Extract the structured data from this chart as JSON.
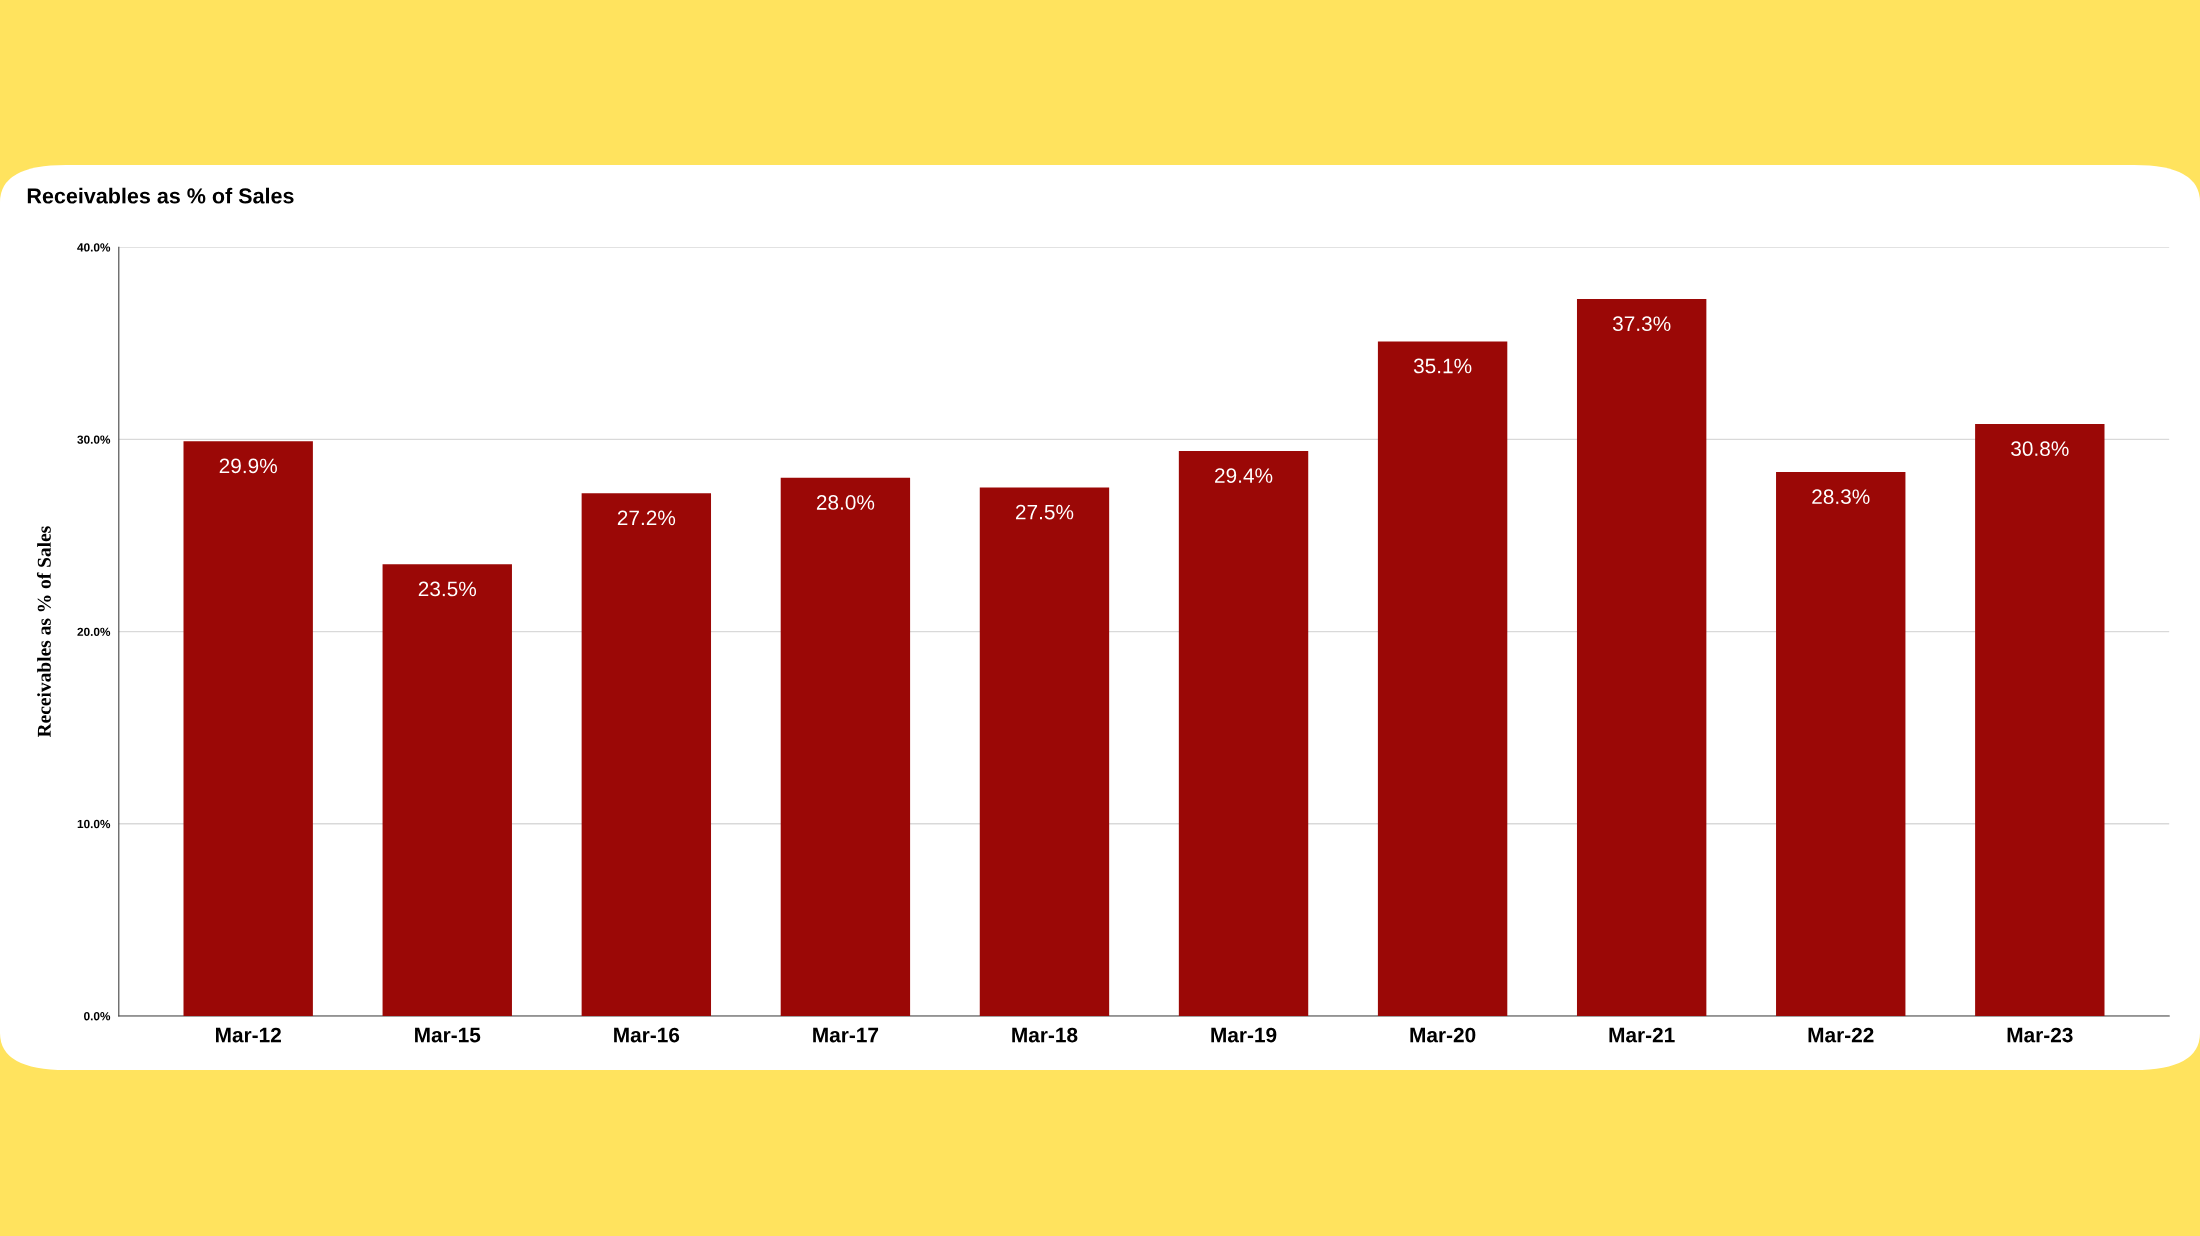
{
  "chart_data": {
    "type": "bar",
    "title": "Receivables as % of Sales",
    "ylabel": "Receivables as % of Sales",
    "categories": [
      "Mar-12",
      "Mar-15",
      "Mar-16",
      "Mar-17",
      "Mar-18",
      "Mar-19",
      "Mar-20",
      "Mar-21",
      "Mar-22",
      "Mar-23"
    ],
    "values": [
      29.9,
      23.5,
      27.2,
      28.0,
      27.5,
      29.4,
      35.1,
      37.3,
      28.3,
      30.8
    ],
    "value_labels": [
      "29.9%",
      "23.5%",
      "27.2%",
      "28.0%",
      "27.5%",
      "29.4%",
      "35.1%",
      "37.3%",
      "28.3%",
      "30.8%"
    ],
    "color": "#9b0806",
    "ylim": [
      0,
      40
    ],
    "yticks": [
      {
        "value": 0,
        "label": "0.0%"
      },
      {
        "value": 10,
        "label": "10.0%"
      },
      {
        "value": 20,
        "label": "20.0%"
      },
      {
        "value": 30,
        "label": "30.0%"
      },
      {
        "value": 40,
        "label": "40.0%"
      }
    ],
    "grid": "y"
  }
}
